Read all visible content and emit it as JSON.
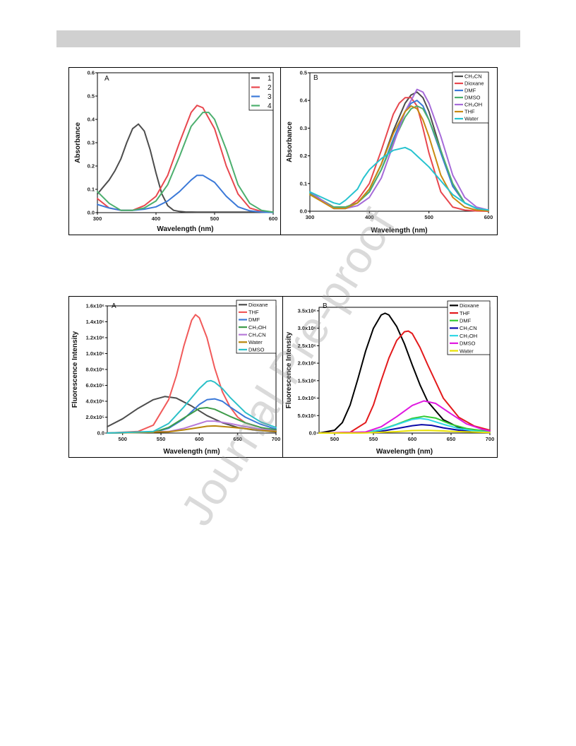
{
  "watermark": "Journal Pre-proof",
  "chart_data": [
    {
      "type": "line",
      "panel_label": "A",
      "xlabel": "Wavelength (nm)",
      "ylabel": "Absorbance",
      "xlim": [
        300,
        600
      ],
      "ylim": [
        0,
        0.6
      ],
      "xticks": [
        300,
        400,
        500,
        600
      ],
      "yticks": [
        0.0,
        0.1,
        0.2,
        0.3,
        0.4,
        0.5,
        0.6
      ],
      "ytick_labels": [
        "0.0",
        "0.1",
        "0.2",
        "0.3",
        "0.4",
        "0.5",
        "0.6"
      ],
      "legend_position": "top-right",
      "series": [
        {
          "name": "1",
          "color": "#4d4d4d",
          "x": [
            300,
            310,
            320,
            330,
            340,
            350,
            360,
            370,
            380,
            390,
            400,
            410,
            420,
            430,
            440,
            450,
            470,
            500,
            550,
            600
          ],
          "y": [
            0.08,
            0.11,
            0.14,
            0.18,
            0.23,
            0.3,
            0.36,
            0.38,
            0.35,
            0.27,
            0.17,
            0.08,
            0.03,
            0.01,
            0.005,
            0.003,
            0.002,
            0.002,
            0.002,
            0.002
          ]
        },
        {
          "name": "2",
          "color": "#e8474e",
          "x": [
            300,
            320,
            340,
            360,
            380,
            400,
            420,
            440,
            460,
            470,
            480,
            500,
            520,
            540,
            560,
            580,
            600
          ],
          "y": [
            0.06,
            0.02,
            0.01,
            0.01,
            0.03,
            0.07,
            0.16,
            0.3,
            0.43,
            0.46,
            0.45,
            0.36,
            0.2,
            0.08,
            0.02,
            0.005,
            0.002
          ]
        },
        {
          "name": "3",
          "color": "#3b79d8",
          "x": [
            300,
            320,
            340,
            360,
            380,
            400,
            420,
            440,
            460,
            470,
            480,
            500,
            520,
            540,
            560,
            580,
            600
          ],
          "y": [
            0.035,
            0.02,
            0.01,
            0.01,
            0.015,
            0.025,
            0.05,
            0.09,
            0.14,
            0.16,
            0.16,
            0.13,
            0.07,
            0.025,
            0.008,
            0.002,
            0.001
          ]
        },
        {
          "name": "4",
          "color": "#4caf6e",
          "x": [
            300,
            320,
            340,
            360,
            380,
            400,
            420,
            440,
            460,
            480,
            490,
            500,
            520,
            540,
            560,
            580,
            600
          ],
          "y": [
            0.09,
            0.04,
            0.01,
            0.01,
            0.02,
            0.05,
            0.12,
            0.24,
            0.37,
            0.43,
            0.43,
            0.4,
            0.27,
            0.12,
            0.04,
            0.01,
            0.002
          ]
        }
      ]
    },
    {
      "type": "line",
      "panel_label": "B",
      "xlabel": "Wavelength (nm)",
      "ylabel": "Absorbance",
      "xlim": [
        300,
        600
      ],
      "ylim": [
        0,
        0.5
      ],
      "xticks": [
        300,
        400,
        500,
        600
      ],
      "yticks": [
        0.0,
        0.1,
        0.2,
        0.3,
        0.4,
        0.5
      ],
      "ytick_labels": [
        "0.0",
        "0.1",
        "0.2",
        "0.3",
        "0.4",
        "0.5"
      ],
      "legend_position": "top-right",
      "series": [
        {
          "name": "CH₃CN",
          "color": "#4d4d4d",
          "x": [
            300,
            320,
            340,
            360,
            380,
            400,
            420,
            440,
            460,
            470,
            480,
            490,
            500,
            520,
            540,
            560,
            580,
            600
          ],
          "y": [
            0.07,
            0.04,
            0.015,
            0.015,
            0.03,
            0.08,
            0.17,
            0.29,
            0.39,
            0.42,
            0.43,
            0.41,
            0.36,
            0.22,
            0.09,
            0.03,
            0.01,
            0.003
          ]
        },
        {
          "name": "Dioxane",
          "color": "#e8474e",
          "x": [
            300,
            320,
            340,
            360,
            380,
            400,
            420,
            440,
            450,
            460,
            470,
            480,
            490,
            500,
            520,
            540,
            560,
            580,
            600
          ],
          "y": [
            0.07,
            0.04,
            0.01,
            0.01,
            0.04,
            0.1,
            0.22,
            0.35,
            0.39,
            0.41,
            0.41,
            0.38,
            0.3,
            0.21,
            0.07,
            0.015,
            0.004,
            0.001,
            0.0
          ]
        },
        {
          "name": "DMF",
          "color": "#3b79d8",
          "x": [
            300,
            320,
            340,
            360,
            380,
            400,
            420,
            440,
            460,
            470,
            480,
            490,
            500,
            520,
            540,
            560,
            580,
            600
          ],
          "y": [
            0.06,
            0.04,
            0.01,
            0.01,
            0.03,
            0.07,
            0.15,
            0.26,
            0.36,
            0.39,
            0.4,
            0.38,
            0.33,
            0.21,
            0.09,
            0.03,
            0.01,
            0.003
          ]
        },
        {
          "name": "DMSO",
          "color": "#4caf6e",
          "x": [
            300,
            320,
            340,
            360,
            380,
            400,
            420,
            440,
            460,
            470,
            480,
            490,
            500,
            520,
            540,
            560,
            580,
            600
          ],
          "y": [
            0.065,
            0.04,
            0.015,
            0.015,
            0.03,
            0.07,
            0.15,
            0.25,
            0.34,
            0.37,
            0.38,
            0.37,
            0.33,
            0.22,
            0.1,
            0.03,
            0.01,
            0.003
          ]
        },
        {
          "name": "CH₃OH",
          "color": "#a66bd9",
          "x": [
            300,
            320,
            340,
            360,
            380,
            400,
            420,
            440,
            460,
            480,
            490,
            500,
            520,
            540,
            560,
            580,
            600
          ],
          "y": [
            0.07,
            0.04,
            0.01,
            0.01,
            0.02,
            0.05,
            0.12,
            0.24,
            0.36,
            0.44,
            0.43,
            0.39,
            0.27,
            0.13,
            0.05,
            0.015,
            0.004
          ]
        },
        {
          "name": "THF",
          "color": "#c88a12",
          "x": [
            300,
            320,
            340,
            360,
            380,
            400,
            420,
            440,
            460,
            470,
            480,
            490,
            500,
            520,
            540,
            560,
            580,
            600
          ],
          "y": [
            0.06,
            0.035,
            0.01,
            0.01,
            0.03,
            0.08,
            0.17,
            0.28,
            0.36,
            0.38,
            0.37,
            0.33,
            0.27,
            0.13,
            0.05,
            0.015,
            0.004,
            0.001
          ]
        },
        {
          "name": "Water",
          "color": "#27c3cf",
          "x": [
            300,
            320,
            340,
            350,
            360,
            380,
            390,
            400,
            420,
            440,
            460,
            470,
            480,
            500,
            520,
            540,
            560,
            580,
            600
          ],
          "y": [
            0.07,
            0.05,
            0.03,
            0.025,
            0.04,
            0.08,
            0.12,
            0.15,
            0.19,
            0.22,
            0.23,
            0.22,
            0.2,
            0.16,
            0.11,
            0.06,
            0.03,
            0.01,
            0.004
          ]
        }
      ]
    },
    {
      "type": "line",
      "panel_label": "A",
      "xlabel": "Wavelength (nm)",
      "ylabel": "Fluorescence Intensity",
      "xlim": [
        480,
        700
      ],
      "ylim": [
        0,
        1600000
      ],
      "xticks": [
        500,
        550,
        600,
        650,
        700
      ],
      "yticks": [
        0,
        200000,
        400000,
        600000,
        800000,
        1000000,
        1200000,
        1400000,
        1600000
      ],
      "ytick_labels": [
        "0.0",
        "2.0x10⁵",
        "4.0x10⁵",
        "6.0x10⁵",
        "8.0x10⁵",
        "1.0x10⁶",
        "1.2x10⁶",
        "1.4x10⁶",
        "1.6x10⁶"
      ],
      "legend_position": "top-right",
      "series": [
        {
          "name": "Dioxane",
          "color": "#4d4d4d",
          "x": [
            480,
            500,
            520,
            540,
            555,
            570,
            590,
            610,
            630,
            650,
            670,
            700
          ],
          "y": [
            80000,
            180000,
            310000,
            420000,
            460000,
            440000,
            340000,
            220000,
            130000,
            70000,
            40000,
            15000
          ]
        },
        {
          "name": "THF",
          "color": "#f15a5a",
          "x": [
            480,
            520,
            540,
            560,
            570,
            580,
            590,
            595,
            600,
            610,
            620,
            630,
            640,
            650,
            660,
            680,
            700
          ],
          "y": [
            0,
            20000,
            100000,
            420000,
            720000,
            1100000,
            1420000,
            1490000,
            1450000,
            1200000,
            820000,
            520000,
            330000,
            200000,
            130000,
            70000,
            30000
          ]
        },
        {
          "name": "DMF",
          "color": "#3b79d8",
          "x": [
            480,
            540,
            560,
            580,
            600,
            610,
            620,
            630,
            640,
            660,
            680,
            700
          ],
          "y": [
            0,
            10000,
            60000,
            180000,
            360000,
            420000,
            430000,
            400000,
            330000,
            200000,
            110000,
            50000
          ]
        },
        {
          "name": "CH₃OH",
          "color": "#3e9c4a",
          "x": [
            480,
            540,
            560,
            580,
            600,
            610,
            620,
            640,
            660,
            680,
            700
          ],
          "y": [
            0,
            10000,
            70000,
            190000,
            310000,
            320000,
            300000,
            210000,
            130000,
            70000,
            40000
          ]
        },
        {
          "name": "CH₃CN",
          "color": "#b77bd9",
          "x": [
            480,
            560,
            580,
            600,
            610,
            620,
            640,
            660,
            680,
            700
          ],
          "y": [
            0,
            20000,
            60000,
            120000,
            150000,
            150000,
            120000,
            80000,
            50000,
            25000
          ]
        },
        {
          "name": "Water",
          "color": "#b8860b",
          "x": [
            480,
            560,
            580,
            600,
            610,
            620,
            640,
            660,
            680,
            700
          ],
          "y": [
            0,
            15000,
            40000,
            70000,
            85000,
            90000,
            75000,
            55000,
            35000,
            20000
          ]
        },
        {
          "name": "DMSO",
          "color": "#2bc0c8",
          "x": [
            480,
            540,
            560,
            580,
            600,
            610,
            615,
            620,
            630,
            640,
            660,
            680,
            700
          ],
          "y": [
            0,
            20000,
            120000,
            330000,
            560000,
            650000,
            660000,
            640000,
            560000,
            450000,
            260000,
            140000,
            70000
          ]
        }
      ]
    },
    {
      "type": "line",
      "panel_label": "B",
      "xlabel": "Wavelength (nm)",
      "ylabel": "Fluorescence Intensity",
      "xlim": [
        480,
        700
      ],
      "ylim": [
        0,
        3600000
      ],
      "xticks": [
        500,
        550,
        600,
        650,
        700
      ],
      "yticks": [
        0,
        500000,
        1000000,
        1500000,
        2000000,
        2500000,
        3000000,
        3500000
      ],
      "ytick_labels": [
        "0.0",
        "5.0x10⁵",
        "1.0x10⁶",
        "1.5x10⁶",
        "2.0x10⁶",
        "2.5x10⁶",
        "3.0x10⁶",
        "3.5x10⁶"
      ],
      "legend_position": "top-right",
      "series": [
        {
          "name": "Dioxane",
          "color": "#000000",
          "x": [
            480,
            500,
            510,
            520,
            530,
            540,
            550,
            560,
            565,
            570,
            580,
            590,
            600,
            610,
            620,
            640,
            660,
            680,
            700
          ],
          "y": [
            0,
            80000,
            300000,
            800000,
            1550000,
            2350000,
            3000000,
            3380000,
            3430000,
            3380000,
            3050000,
            2550000,
            1950000,
            1380000,
            900000,
            380000,
            160000,
            70000,
            30000
          ]
        },
        {
          "name": "THF",
          "color": "#e31a1c",
          "x": [
            480,
            520,
            540,
            550,
            560,
            570,
            580,
            590,
            595,
            600,
            610,
            620,
            640,
            660,
            680,
            700
          ],
          "y": [
            0,
            20000,
            300000,
            800000,
            1500000,
            2150000,
            2650000,
            2900000,
            2920000,
            2850000,
            2450000,
            1950000,
            1000000,
            450000,
            200000,
            80000
          ]
        },
        {
          "name": "DMF",
          "color": "#33cc33",
          "x": [
            480,
            540,
            560,
            580,
            600,
            615,
            630,
            650,
            670,
            700
          ],
          "y": [
            0,
            20000,
            100000,
            250000,
            420000,
            480000,
            430000,
            250000,
            130000,
            40000
          ]
        },
        {
          "name": "CH₃CN",
          "color": "#0a0aa8",
          "x": [
            480,
            540,
            560,
            580,
            600,
            612,
            625,
            640,
            660,
            680,
            700
          ],
          "y": [
            0,
            10000,
            50000,
            130000,
            210000,
            240000,
            220000,
            150000,
            80000,
            40000,
            15000
          ]
        },
        {
          "name": "CH₃OH",
          "color": "#30d7e6",
          "x": [
            480,
            540,
            560,
            580,
            600,
            610,
            620,
            640,
            660,
            680,
            700
          ],
          "y": [
            0,
            20000,
            90000,
            240000,
            390000,
            420000,
            390000,
            250000,
            130000,
            60000,
            25000
          ]
        },
        {
          "name": "DMSO",
          "color": "#e018e0",
          "x": [
            480,
            540,
            560,
            580,
            600,
            615,
            630,
            650,
            670,
            690,
            700
          ],
          "y": [
            0,
            30000,
            180000,
            470000,
            790000,
            920000,
            850000,
            550000,
            260000,
            110000,
            60000
          ]
        },
        {
          "name": "Water",
          "color": "#e8e000",
          "x": [
            480,
            540,
            580,
            600,
            620,
            640,
            660,
            700
          ],
          "y": [
            0,
            5000,
            40000,
            70000,
            75000,
            60000,
            40000,
            15000
          ]
        }
      ]
    }
  ]
}
